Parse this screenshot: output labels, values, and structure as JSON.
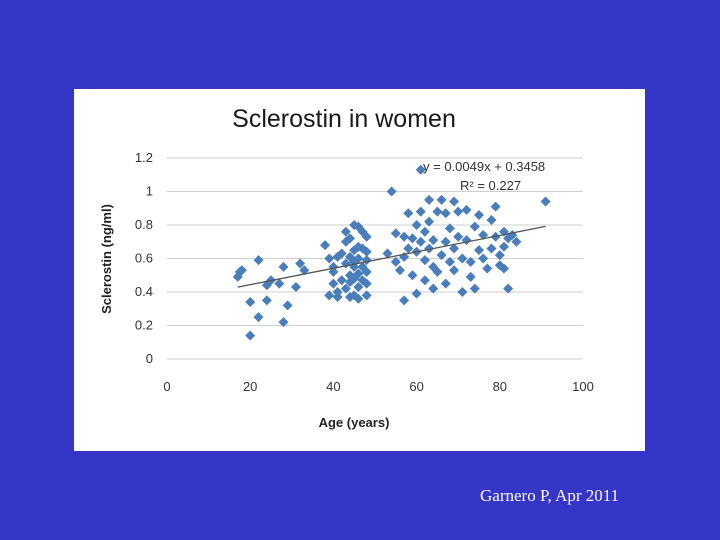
{
  "footer": {
    "credit": "Garnero P, Apr 2011"
  },
  "chart_data": {
    "type": "scatter",
    "title": "Sclerostin in women",
    "xlabel": "Age (years)",
    "ylabel": "Sclerostin (ng/ml)",
    "xlim": [
      0,
      100
    ],
    "ylim": [
      0,
      1.2
    ],
    "xticks": [
      "0",
      "20",
      "40",
      "60",
      "80",
      "100"
    ],
    "yticks": [
      "0",
      "0.2",
      "0.4",
      "0.6",
      "0.8",
      "1",
      "1.2"
    ],
    "grid": "horizontal",
    "marker_color": "#4a7ebb",
    "trendline": {
      "slope": 0.0049,
      "intercept": 0.3458,
      "x_range": [
        17,
        91
      ]
    },
    "annotations": [
      "y = 0.0049x + 0.3458",
      "R² = 0.227"
    ],
    "points": [
      [
        17,
        0.49
      ],
      [
        17.5,
        0.52
      ],
      [
        18,
        0.53
      ],
      [
        20,
        0.34
      ],
      [
        20,
        0.14
      ],
      [
        22,
        0.59
      ],
      [
        22,
        0.25
      ],
      [
        24,
        0.44
      ],
      [
        24,
        0.35
      ],
      [
        25,
        0.47
      ],
      [
        27,
        0.45
      ],
      [
        28,
        0.55
      ],
      [
        28,
        0.22
      ],
      [
        29,
        0.32
      ],
      [
        31,
        0.43
      ],
      [
        32,
        0.57
      ],
      [
        33,
        0.53
      ],
      [
        38,
        0.68
      ],
      [
        39,
        0.6
      ],
      [
        39,
        0.38
      ],
      [
        40,
        0.45
      ],
      [
        40,
        0.55
      ],
      [
        40,
        0.52
      ],
      [
        41,
        0.4
      ],
      [
        41,
        0.61
      ],
      [
        41,
        0.37
      ],
      [
        42,
        0.47
      ],
      [
        42,
        0.63
      ],
      [
        43,
        0.57
      ],
      [
        43,
        0.42
      ],
      [
        43,
        0.7
      ],
      [
        43,
        0.76
      ],
      [
        44,
        0.5
      ],
      [
        44,
        0.37
      ],
      [
        44,
        0.61
      ],
      [
        44,
        0.46
      ],
      [
        44,
        0.72
      ],
      [
        45,
        0.8
      ],
      [
        45,
        0.55
      ],
      [
        45,
        0.65
      ],
      [
        45,
        0.38
      ],
      [
        45,
        0.48
      ],
      [
        45,
        0.58
      ],
      [
        46,
        0.79
      ],
      [
        46,
        0.67
      ],
      [
        46,
        0.51
      ],
      [
        46,
        0.36
      ],
      [
        46,
        0.43
      ],
      [
        46,
        0.6
      ],
      [
        47,
        0.76
      ],
      [
        47,
        0.55
      ],
      [
        47,
        0.47
      ],
      [
        47,
        0.66
      ],
      [
        48,
        0.73
      ],
      [
        48,
        0.59
      ],
      [
        48,
        0.45
      ],
      [
        48,
        0.38
      ],
      [
        48,
        0.52
      ],
      [
        48,
        0.64
      ],
      [
        53,
        0.63
      ],
      [
        54,
        1.0
      ],
      [
        55,
        0.75
      ],
      [
        55,
        0.58
      ],
      [
        56,
        0.53
      ],
      [
        57,
        0.73
      ],
      [
        57,
        0.61
      ],
      [
        57,
        0.35
      ],
      [
        58,
        0.87
      ],
      [
        58,
        0.66
      ],
      [
        59,
        0.5
      ],
      [
        59,
        0.72
      ],
      [
        60,
        0.8
      ],
      [
        60,
        0.64
      ],
      [
        60,
        0.39
      ],
      [
        61,
        1.13
      ],
      [
        61,
        0.88
      ],
      [
        61,
        0.7
      ],
      [
        62,
        0.76
      ],
      [
        62,
        0.59
      ],
      [
        62,
        0.47
      ],
      [
        63,
        0.95
      ],
      [
        63,
        0.82
      ],
      [
        63,
        0.66
      ],
      [
        64,
        0.55
      ],
      [
        64,
        0.42
      ],
      [
        64,
        0.71
      ],
      [
        65,
        0.88
      ],
      [
        65,
        0.52
      ],
      [
        66,
        0.95
      ],
      [
        66,
        0.62
      ],
      [
        67,
        0.87
      ],
      [
        67,
        0.7
      ],
      [
        67,
        0.45
      ],
      [
        68,
        0.78
      ],
      [
        68,
        0.58
      ],
      [
        69,
        0.94
      ],
      [
        69,
        0.66
      ],
      [
        69,
        0.53
      ],
      [
        70,
        0.73
      ],
      [
        70,
        0.88
      ],
      [
        71,
        0.6
      ],
      [
        71,
        0.4
      ],
      [
        72,
        0.71
      ],
      [
        72,
        0.89
      ],
      [
        73,
        0.58
      ],
      [
        73,
        0.49
      ],
      [
        74,
        0.79
      ],
      [
        74,
        0.42
      ],
      [
        75,
        0.86
      ],
      [
        75,
        0.65
      ],
      [
        76,
        0.74
      ],
      [
        76,
        0.6
      ],
      [
        77,
        0.54
      ],
      [
        78,
        0.83
      ],
      [
        78,
        0.66
      ],
      [
        79,
        0.91
      ],
      [
        79,
        0.73
      ],
      [
        80,
        0.56
      ],
      [
        80,
        0.62
      ],
      [
        81,
        0.76
      ],
      [
        81,
        0.67
      ],
      [
        81,
        0.54
      ],
      [
        82,
        0.42
      ],
      [
        82,
        0.72
      ],
      [
        83,
        0.74
      ],
      [
        84,
        0.7
      ],
      [
        91,
        0.94
      ]
    ]
  }
}
